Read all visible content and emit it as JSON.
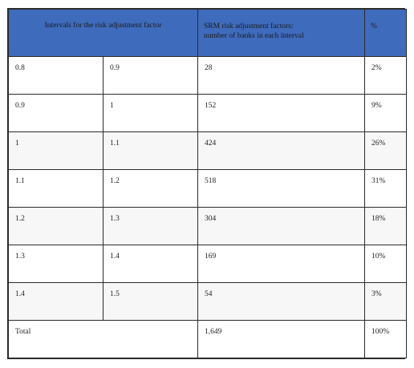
{
  "header": {
    "intervals_label": "Intervals for the risk adjustment factor",
    "srm_label_line1": "SRM risk adjustment factors:",
    "srm_label_line2": "number of  banks in each interval",
    "percent_label": "%"
  },
  "rows": [
    {
      "low": "0.8",
      "high": "0.9",
      "banks": "28",
      "pct": "2%"
    },
    {
      "low": "0.9",
      "high": "1",
      "banks": "152",
      "pct": "9%"
    },
    {
      "low": "1",
      "high": "1.1",
      "banks": "424",
      "pct": "26%"
    },
    {
      "low": "1.1",
      "high": "1.2",
      "banks": "518",
      "pct": "31%"
    },
    {
      "low": "1.2",
      "high": "1.3",
      "banks": "304",
      "pct": "18%"
    },
    {
      "low": "1.3",
      "high": "1.4",
      "banks": "169",
      "pct": "10%"
    },
    {
      "low": "1.4",
      "high": "1.5",
      "banks": "54",
      "pct": "3%"
    }
  ],
  "total": {
    "label": "Total",
    "banks": "1,649",
    "pct": "100%"
  },
  "colors": {
    "header_bg": "#3f6bbd",
    "border": "#2b2b2b"
  }
}
